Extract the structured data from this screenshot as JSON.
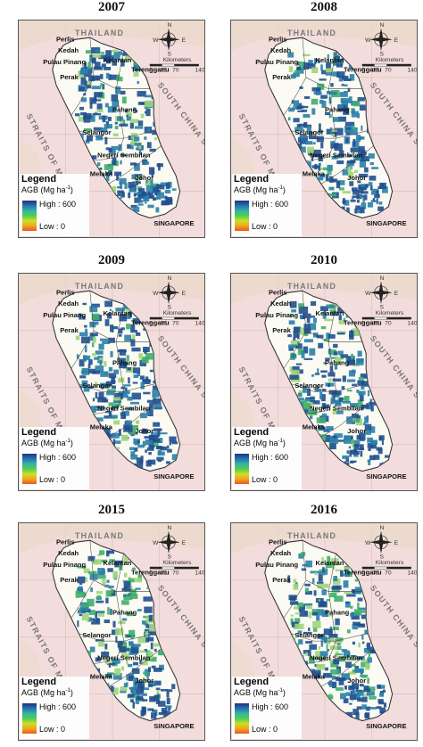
{
  "panels": [
    {
      "year": "2007"
    },
    {
      "year": "2008"
    },
    {
      "year": "2009"
    },
    {
      "year": "2010"
    },
    {
      "year": "2015"
    },
    {
      "year": "2016"
    }
  ],
  "legend": {
    "title": "Legend",
    "unit": "AGB (Mg ha",
    "unit_sup": "-1",
    "unit_close": ")",
    "high": "High : 600",
    "low": "Low : 0",
    "ramp_colors": [
      "#1a2d7a",
      "#1f6fb3",
      "#2fb3a3",
      "#4ccc50",
      "#c8e020",
      "#f2a51a",
      "#e8551c"
    ]
  },
  "map_labels": {
    "country_north": "THAILAND",
    "sea_east": "SOUTH CHINA SEA",
    "sea_west": "STRAITS OF MELAKA",
    "singapore": "SINGAPORE",
    "states": [
      "Perlis",
      "Kedah",
      "Pulau Pinang",
      "Perak",
      "Kelantan",
      "Terengganu",
      "Pahang",
      "Selangor",
      "Negeri Sembilan",
      "Melaka",
      "Johor"
    ],
    "scale_title": "Kilometers",
    "scale_ticks": [
      "0",
      "35",
      "70",
      "140"
    ],
    "compass": [
      "N",
      "E",
      "S",
      "W"
    ]
  },
  "colors": {
    "land": "#fbfbf4",
    "outside": "#f3dcdc",
    "forest_dense": "#1f4f8f",
    "forest_mid": "#2a7fa8",
    "forest_green": "#3fae6a",
    "forest_light": "#9fd47a"
  }
}
